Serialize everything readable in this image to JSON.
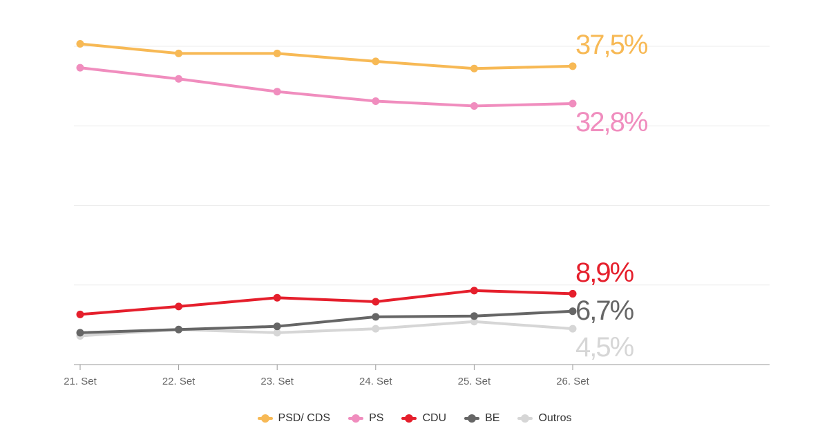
{
  "chart_data": {
    "type": "line",
    "title": "",
    "xlabel": "",
    "ylabel": "",
    "categories": [
      "21. Set",
      "22. Set",
      "23. Set",
      "24. Set",
      "25. Set",
      "26. Set"
    ],
    "ylim": [
      0,
      40
    ],
    "grid": true,
    "legend": "bottom-center",
    "series": [
      {
        "name": "PSD/ CDS",
        "color": "#F7B955",
        "values": [
          40.3,
          39.1,
          39.1,
          38.1,
          37.2,
          37.5
        ],
        "end_label": "37,5%"
      },
      {
        "name": "PS",
        "color": "#F08DBE",
        "values": [
          37.3,
          35.9,
          34.3,
          33.1,
          32.5,
          32.8
        ],
        "end_label": "32,8%"
      },
      {
        "name": "CDU",
        "color": "#E51F2C",
        "values": [
          6.3,
          7.3,
          8.4,
          7.9,
          9.3,
          8.9
        ],
        "end_label": "8,9%"
      },
      {
        "name": "BE",
        "color": "#666666",
        "values": [
          4.0,
          4.4,
          4.8,
          6.0,
          6.1,
          6.7
        ],
        "end_label": "6,7%"
      },
      {
        "name": "Outros",
        "color": "#D6D6D6",
        "values": [
          3.6,
          4.4,
          4.0,
          4.5,
          5.4,
          4.5
        ],
        "end_label": "4,5%"
      }
    ]
  }
}
